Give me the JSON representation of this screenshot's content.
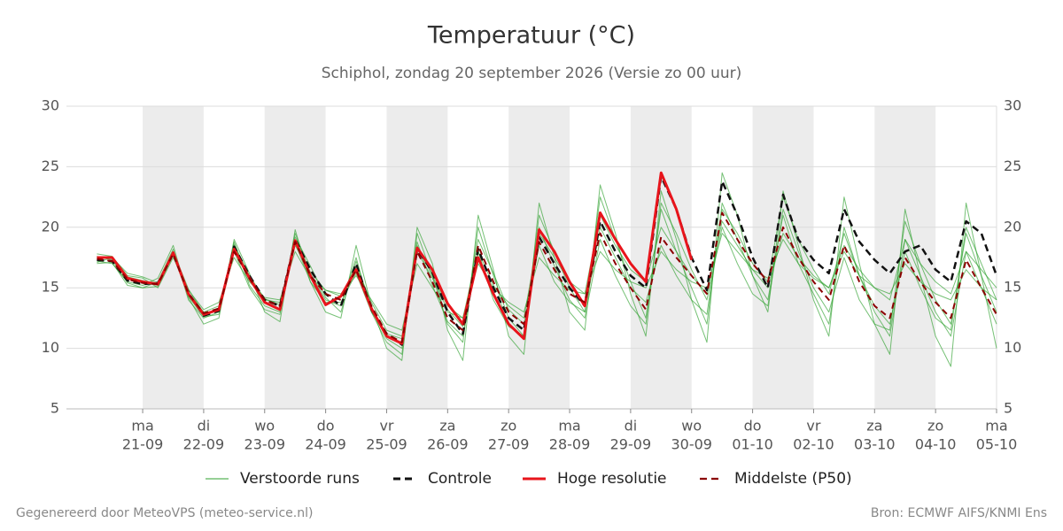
{
  "chart_data": {
    "type": "line",
    "title": "Temperatuur (°C)",
    "subtitle": "Schiphol, zondag 20 september 2026 (Versie zo 00 uur)",
    "footer_left": "Gegenereerd door MeteoVPS (meteo-service.nl)",
    "footer_right": "Bron: ECMWF AIFS/KNMI Ens",
    "grid": true,
    "legend": "bottom",
    "ylim": [
      5,
      30
    ],
    "yticks": [
      5,
      10,
      15,
      20,
      25,
      30
    ],
    "xlim": [
      "2026-09-19T18:00",
      "2026-10-05T00:00"
    ],
    "xticks": [
      {
        "value": "2026-09-21T00:00",
        "label": "ma",
        "sublabel": "21-09"
      },
      {
        "value": "2026-09-22T00:00",
        "label": "di",
        "sublabel": "22-09"
      },
      {
        "value": "2026-09-23T00:00",
        "label": "wo",
        "sublabel": "23-09"
      },
      {
        "value": "2026-09-24T00:00",
        "label": "do",
        "sublabel": "24-09"
      },
      {
        "value": "2026-09-25T00:00",
        "label": "vr",
        "sublabel": "25-09"
      },
      {
        "value": "2026-09-26T00:00",
        "label": "za",
        "sublabel": "26-09"
      },
      {
        "value": "2026-09-27T00:00",
        "label": "zo",
        "sublabel": "27-09"
      },
      {
        "value": "2026-09-28T00:00",
        "label": "ma",
        "sublabel": "28-09"
      },
      {
        "value": "2026-09-29T00:00",
        "label": "di",
        "sublabel": "29-09"
      },
      {
        "value": "2026-09-30T00:00",
        "label": "wo",
        "sublabel": "30-09"
      },
      {
        "value": "2026-10-01T00:00",
        "label": "do",
        "sublabel": "01-10"
      },
      {
        "value": "2026-10-02T00:00",
        "label": "vr",
        "sublabel": "02-10"
      },
      {
        "value": "2026-10-03T00:00",
        "label": "za",
        "sublabel": "03-10"
      },
      {
        "value": "2026-10-04T00:00",
        "label": "zo",
        "sublabel": "04-10"
      },
      {
        "value": "2026-10-05T00:00",
        "label": "ma",
        "sublabel": "05-10"
      }
    ],
    "x": [
      "2026-09-20T06:00",
      "2026-09-20T12:00",
      "2026-09-20T18:00",
      "2026-09-21T00:00",
      "2026-09-21T06:00",
      "2026-09-21T12:00",
      "2026-09-21T18:00",
      "2026-09-22T00:00",
      "2026-09-22T06:00",
      "2026-09-22T12:00",
      "2026-09-22T18:00",
      "2026-09-23T00:00",
      "2026-09-23T06:00",
      "2026-09-23T12:00",
      "2026-09-23T18:00",
      "2026-09-24T00:00",
      "2026-09-24T06:00",
      "2026-09-24T12:00",
      "2026-09-24T18:00",
      "2026-09-25T00:00",
      "2026-09-25T06:00",
      "2026-09-25T12:00",
      "2026-09-25T18:00",
      "2026-09-26T00:00",
      "2026-09-26T06:00",
      "2026-09-26T12:00",
      "2026-09-26T18:00",
      "2026-09-27T00:00",
      "2026-09-27T06:00",
      "2026-09-27T12:00",
      "2026-09-27T18:00",
      "2026-09-28T00:00",
      "2026-09-28T06:00",
      "2026-09-28T12:00",
      "2026-09-28T18:00",
      "2026-09-29T00:00",
      "2026-09-29T06:00",
      "2026-09-29T12:00",
      "2026-09-29T18:00",
      "2026-09-30T00:00",
      "2026-09-30T06:00",
      "2026-09-30T12:00",
      "2026-09-30T18:00",
      "2026-10-01T00:00",
      "2026-10-01T06:00",
      "2026-10-01T12:00",
      "2026-10-01T18:00",
      "2026-10-02T00:00",
      "2026-10-02T06:00",
      "2026-10-02T12:00",
      "2026-10-02T18:00",
      "2026-10-03T00:00",
      "2026-10-03T06:00",
      "2026-10-03T12:00",
      "2026-10-03T18:00",
      "2026-10-04T00:00",
      "2026-10-04T06:00",
      "2026-10-04T12:00",
      "2026-10-04T18:00",
      "2026-10-05T00:00"
    ],
    "ensemble": {
      "name": "Verstoorde runs",
      "color": "#2ca02c",
      "members": [
        [
          17.0,
          17.1,
          15.2,
          15.0,
          15.5,
          18.2,
          14.0,
          12.5,
          13.0,
          18.8,
          15.2,
          13.5,
          13.0,
          19.5,
          16.2,
          14.0,
          13.5,
          17.5,
          13.0,
          10.5,
          9.5,
          19.5,
          16.0,
          12.0,
          10.5,
          20.0,
          16.0,
          12.5,
          11.0,
          21.0,
          18.0,
          15.0,
          13.0,
          22.5,
          19.0,
          15.5,
          12.5,
          21.5,
          18.0,
          15.0,
          12.0,
          22.0,
          19.0,
          16.0,
          14.0,
          21.0,
          17.0,
          14.5,
          12.0,
          20.0,
          16.0,
          13.0,
          11.0,
          19.0,
          16.0,
          13.0,
          11.0,
          18.0,
          15.0,
          12.0
        ],
        [
          17.8,
          17.6,
          16.0,
          15.8,
          15.0,
          17.5,
          14.8,
          13.2,
          13.8,
          17.5,
          15.5,
          14.2,
          14.0,
          18.0,
          15.8,
          14.8,
          14.5,
          16.0,
          14.0,
          12.0,
          11.5,
          17.0,
          15.0,
          13.0,
          12.5,
          17.0,
          15.0,
          13.8,
          13.0,
          17.5,
          16.0,
          14.8,
          14.5,
          18.0,
          16.5,
          15.5,
          15.0,
          18.0,
          16.5,
          15.5,
          15.0,
          19.5,
          18.0,
          16.5,
          15.8,
          19.0,
          17.0,
          15.8,
          15.0,
          18.0,
          16.0,
          15.0,
          14.5,
          17.0,
          15.5,
          14.5,
          14.0,
          16.5,
          15.0,
          14.0
        ],
        [
          17.2,
          17.0,
          15.5,
          15.2,
          15.8,
          18.5,
          14.2,
          12.0,
          12.5,
          19.0,
          16.2,
          13.0,
          12.2,
          19.8,
          15.5,
          13.0,
          12.5,
          18.5,
          13.5,
          10.0,
          9.0,
          20.0,
          17.0,
          11.5,
          9.0,
          21.0,
          16.5,
          11.0,
          9.5,
          22.0,
          17.5,
          13.0,
          11.5,
          23.5,
          19.5,
          14.5,
          11.0,
          23.0,
          19.0,
          14.0,
          10.5,
          24.5,
          21.0,
          16.0,
          13.0,
          23.0,
          18.5,
          14.0,
          11.0,
          22.5,
          17.0,
          12.0,
          9.5,
          21.5,
          16.0,
          11.0,
          8.5,
          22.0,
          16.0,
          10.0
        ],
        [
          17.5,
          17.4,
          15.9,
          15.6,
          15.2,
          17.9,
          14.6,
          13.0,
          13.5,
          18.3,
          15.6,
          14.0,
          13.8,
          18.5,
          16.3,
          14.8,
          14.3,
          16.8,
          13.8,
          11.5,
          11.0,
          18.5,
          16.0,
          13.5,
          12.5,
          18.0,
          15.2,
          13.5,
          12.5,
          19.5,
          17.5,
          15.5,
          14.5,
          21.0,
          18.5,
          16.5,
          15.5,
          20.0,
          18.0,
          16.0,
          14.5,
          20.5,
          18.5,
          16.5,
          15.0,
          19.5,
          17.5,
          16.0,
          15.0,
          18.5,
          16.5,
          15.0,
          14.0,
          19.0,
          17.0,
          15.5,
          14.5,
          18.0,
          16.5,
          15.0
        ],
        [
          17.6,
          17.3,
          15.4,
          15.0,
          15.1,
          17.7,
          14.3,
          12.6,
          12.8,
          18.0,
          15.0,
          13.2,
          12.8,
          19.2,
          16.8,
          14.2,
          13.0,
          17.2,
          13.2,
          10.8,
          10.0,
          18.8,
          15.2,
          12.2,
          11.0,
          18.0,
          14.0,
          11.8,
          11.0,
          20.0,
          16.8,
          14.0,
          12.5,
          19.0,
          16.0,
          13.5,
          12.0,
          22.0,
          19.5,
          16.5,
          14.0,
          20.0,
          17.0,
          14.5,
          13.5,
          21.5,
          18.0,
          15.0,
          13.0,
          17.5,
          14.0,
          12.0,
          11.5,
          20.5,
          17.0,
          14.0,
          12.0,
          19.5,
          16.0,
          13.0
        ],
        [
          17.1,
          17.5,
          16.2,
          15.9,
          15.4,
          18.0,
          14.9,
          12.9,
          13.2,
          18.6,
          16.0,
          14.1,
          13.6,
          18.7,
          15.5,
          13.8,
          13.8,
          16.2,
          13.0,
          11.2,
          10.8,
          18.0,
          15.8,
          13.2,
          11.8,
          19.0,
          16.2,
          13.2,
          12.0,
          18.5,
          15.5,
          13.8,
          13.0,
          20.0,
          17.5,
          15.0,
          13.8,
          18.5,
          16.0,
          14.0,
          12.8,
          21.5,
          19.5,
          17.0,
          15.5,
          22.5,
          19.0,
          16.5,
          14.5,
          19.5,
          16.0,
          13.5,
          12.0,
          18.0,
          15.0,
          12.5,
          11.5,
          20.0,
          17.0,
          14.0
        ]
      ]
    },
    "series": [
      {
        "name": "Controle",
        "color": "#111111",
        "dash": true,
        "values": [
          17.3,
          17.2,
          15.6,
          15.3,
          15.4,
          17.8,
          14.6,
          12.7,
          13.1,
          18.4,
          16.0,
          14.0,
          13.5,
          19.0,
          16.5,
          14.5,
          13.5,
          17.0,
          13.2,
          11.2,
          10.3,
          18.2,
          16.3,
          13.0,
          11.2,
          18.2,
          15.0,
          12.5,
          11.5,
          19.2,
          17.0,
          15.0,
          13.5,
          20.5,
          18.0,
          16.0,
          15.0,
          24.2,
          21.5,
          17.5,
          14.8,
          23.8,
          21.0,
          17.5,
          15.0,
          22.7,
          19.0,
          17.3,
          16.2,
          21.5,
          18.8,
          17.3,
          16.2,
          18.0,
          18.5,
          16.5,
          15.5,
          20.5,
          19.5,
          16.0
        ]
      },
      {
        "name": "Hoge resolutie",
        "color": "#e8141b",
        "dash": false,
        "values": [
          17.5,
          17.5,
          15.8,
          15.5,
          15.3,
          17.9,
          14.5,
          12.8,
          13.2,
          18.2,
          15.8,
          13.8,
          13.2,
          18.9,
          16.0,
          13.6,
          14.3,
          16.5,
          13.3,
          11.0,
          10.4,
          18.3,
          16.5,
          13.7,
          12.0,
          17.5,
          14.5,
          12.0,
          10.8,
          19.8,
          18.0,
          15.5,
          13.5,
          21.2,
          19.0,
          17.0,
          15.5,
          24.5,
          21.5,
          17.3,
          null,
          null,
          null,
          null,
          null,
          null,
          null,
          null,
          null,
          null,
          null,
          null,
          null,
          null,
          null,
          null,
          null,
          null,
          null,
          null
        ]
      },
      {
        "name": "Middelste (P50)",
        "color": "#8b0000",
        "dash": true,
        "values": [
          17.4,
          17.2,
          15.7,
          15.4,
          15.3,
          17.8,
          14.5,
          12.9,
          13.3,
          18.0,
          15.8,
          14.0,
          13.5,
          18.8,
          16.0,
          14.5,
          14.0,
          16.5,
          13.5,
          11.2,
          10.5,
          18.0,
          15.5,
          12.5,
          11.5,
          18.5,
          15.5,
          13.0,
          12.0,
          18.8,
          16.5,
          14.5,
          13.8,
          19.5,
          17.0,
          15.0,
          13.2,
          19.2,
          17.5,
          16.0,
          14.5,
          21.2,
          19.0,
          17.0,
          15.5,
          20.0,
          17.5,
          15.5,
          14.0,
          18.5,
          15.5,
          13.5,
          12.5,
          17.5,
          15.5,
          13.8,
          12.5,
          17.3,
          15.0,
          12.8
        ]
      }
    ]
  }
}
